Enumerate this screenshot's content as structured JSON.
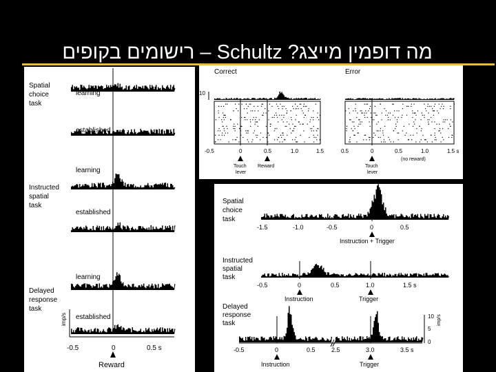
{
  "slide": {
    "title": "מה דופמין מייצג? Schultz – רישומים בקופים",
    "accent_color": "#e7b94a"
  },
  "left_figure": {
    "tasks": [
      {
        "label": [
          "Spatial",
          "choice",
          "task"
        ],
        "conditions": [
          "learning",
          "established"
        ]
      },
      {
        "label": [
          "Instructed",
          "spatial",
          "task"
        ],
        "conditions": [
          "learning",
          "established"
        ]
      },
      {
        "label": [
          "Delayed",
          "response",
          "task"
        ],
        "conditions": [
          "learning",
          "established"
        ]
      }
    ],
    "y_unit": "imp/s",
    "x_ticks": [
      "-0.5",
      "0",
      "0.5 s"
    ],
    "event": "Reward"
  },
  "top_right_figure": {
    "panels": [
      {
        "title": "Correct",
        "y_tick": "10",
        "x_ticks": [
          "-0.5",
          "0",
          "0.5",
          "1.0",
          "1.5"
        ],
        "events": [
          {
            "label": [
              "Touch",
              "lever"
            ]
          },
          {
            "label": [
              "Reward"
            ]
          }
        ]
      },
      {
        "title": "Error",
        "x_ticks": [
          "0.5",
          "0",
          "0.5",
          "1.0",
          "1.5 s"
        ],
        "note": "(no reward)",
        "events": [
          {
            "label": [
              "Touch",
              "lever"
            ]
          }
        ]
      }
    ]
  },
  "bottom_right_figure": {
    "tasks": [
      {
        "label": [
          "Spatial",
          "choice",
          "task"
        ],
        "x_ticks": [
          "-1.5",
          "-1.0",
          "-0.5",
          "0",
          "0.5"
        ],
        "events": [
          "Instruction + Trigger"
        ]
      },
      {
        "label": [
          "Instructed",
          "spatial",
          "task"
        ],
        "x_ticks": [
          "-0.5",
          "0",
          "0.5",
          "1.0",
          "1.5 s"
        ],
        "events": [
          "Instruction",
          "Trigger"
        ]
      },
      {
        "label": [
          "Delayed",
          "response",
          "task"
        ],
        "x_ticks": [
          "-0.5",
          "0",
          "0.5",
          "2.5",
          "3.0",
          "3.5 s"
        ],
        "events": [
          "Instruction",
          "Trigger"
        ],
        "y_ticks": [
          "10",
          "5",
          "0"
        ],
        "y_unit": "imp/s"
      }
    ]
  }
}
